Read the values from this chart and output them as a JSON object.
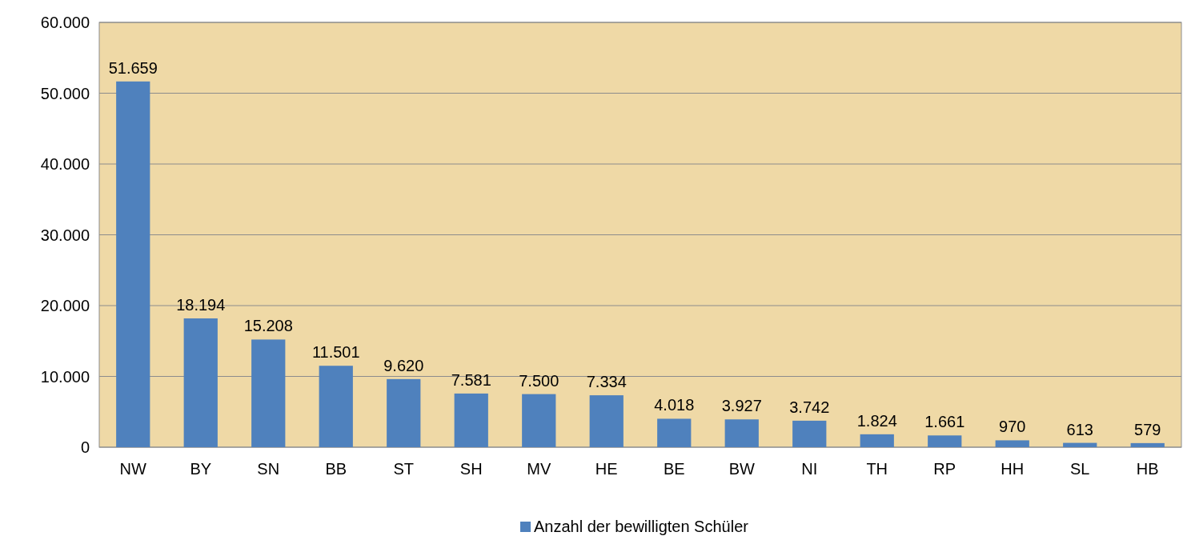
{
  "chart_data": {
    "type": "bar",
    "categories": [
      "NW",
      "BY",
      "SN",
      "BB",
      "ST",
      "SH",
      "MV",
      "HE",
      "BE",
      "BW",
      "NI",
      "TH",
      "RP",
      "HH",
      "SL",
      "HB"
    ],
    "series": [
      {
        "name": "Anzahl der bewilligten Schüler",
        "color": "#4f81bd",
        "values": [
          51659,
          18194,
          15208,
          11501,
          9620,
          7581,
          7500,
          7334,
          4018,
          3927,
          3742,
          1824,
          1661,
          970,
          613,
          579
        ],
        "value_labels": [
          "51.659",
          "18.194",
          "15.208",
          "11.501",
          "9.620",
          "7.581",
          "7.500",
          "7.334",
          "4.018",
          "3.927",
          "3.742",
          "1.824",
          "1.661",
          "970",
          "613",
          "579"
        ]
      }
    ],
    "ylim": [
      0,
      60000
    ],
    "yticks": [
      {
        "value": 0,
        "label": "0"
      },
      {
        "value": 10000,
        "label": "10.000"
      },
      {
        "value": 20000,
        "label": "20.000"
      },
      {
        "value": 30000,
        "label": "30.000"
      },
      {
        "value": 40000,
        "label": "40.000"
      },
      {
        "value": 50000,
        "label": "50.000"
      },
      {
        "value": 60000,
        "label": "60.000"
      }
    ],
    "grid": "y",
    "legend": "bottom"
  }
}
